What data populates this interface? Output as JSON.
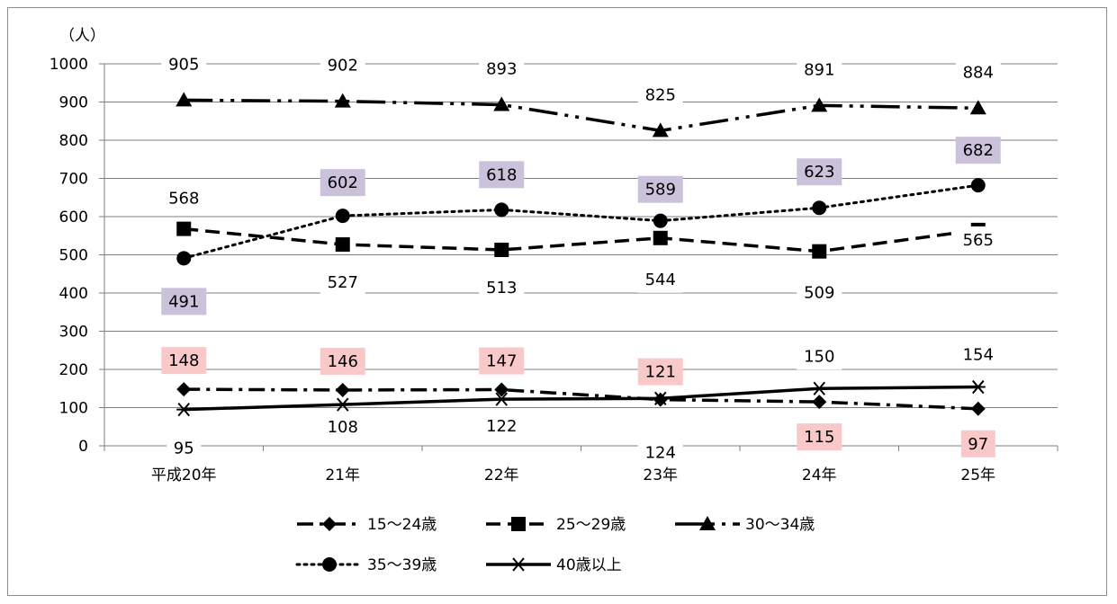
{
  "chart_data": {
    "type": "line",
    "y_unit": "（人）",
    "categories": [
      "平成20年",
      "21年",
      "22年",
      "23年",
      "24年",
      "25年"
    ],
    "ylim": [
      0,
      1000
    ],
    "yticks": [
      0,
      100,
      200,
      300,
      400,
      500,
      600,
      700,
      800,
      900,
      1000
    ],
    "grid": true,
    "legend_position": "bottom",
    "series": [
      {
        "name": "15～24歳",
        "values": [
          148,
          146,
          147,
          121,
          115,
          97
        ],
        "marker": "diamond",
        "dash": "dash-dot",
        "label_bg": "#f8c9c8"
      },
      {
        "name": "25～29歳",
        "values": [
          568,
          527,
          513,
          544,
          509,
          565
        ],
        "marker": "square",
        "dash": "dash",
        "label_bg": "none"
      },
      {
        "name": "30～34歳",
        "values": [
          905,
          902,
          893,
          825,
          891,
          884
        ],
        "marker": "triangle",
        "dash": "long-dash-dot-dot",
        "label_bg": "none"
      },
      {
        "name": "35～39歳",
        "values": [
          491,
          602,
          618,
          589,
          623,
          682
        ],
        "marker": "circle",
        "dash": "dot",
        "label_bg": "#ccc1da"
      },
      {
        "name": "40歳以上",
        "values": [
          95,
          108,
          122,
          124,
          150,
          154
        ],
        "marker": "star",
        "dash": "solid",
        "label_bg": "none"
      }
    ]
  }
}
